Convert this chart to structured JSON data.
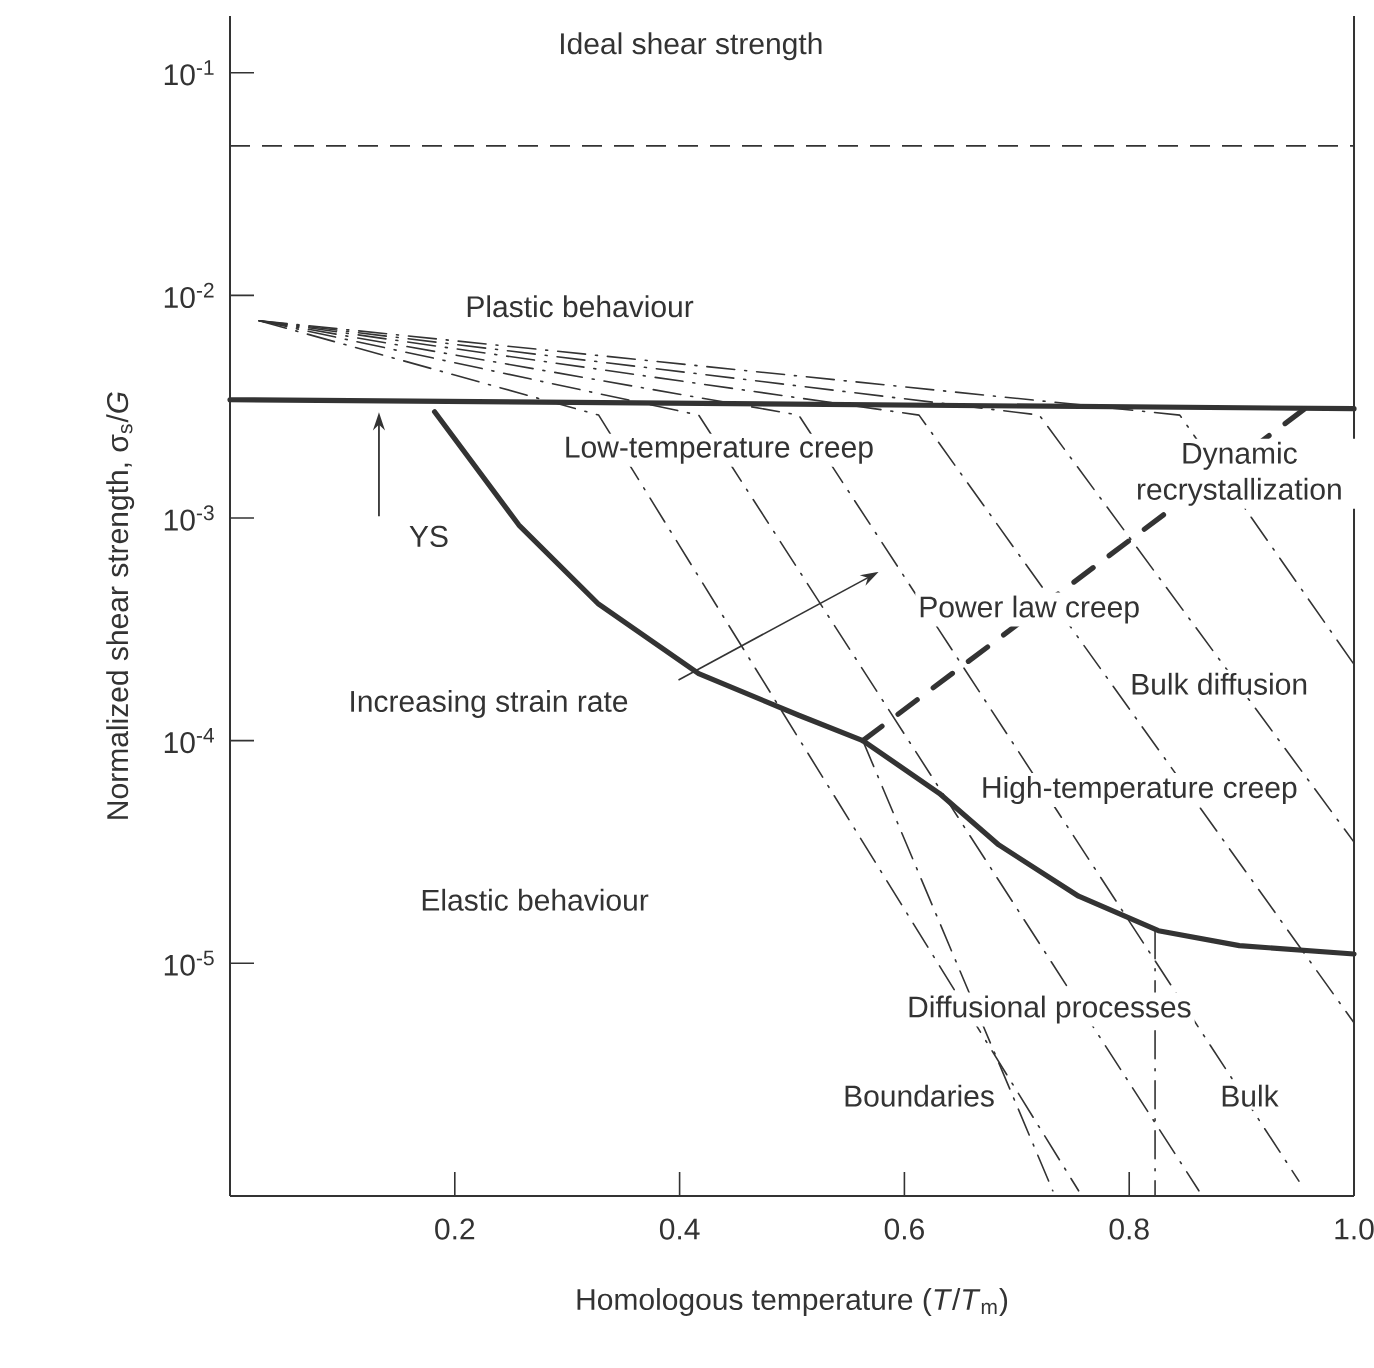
{
  "chart_data": {
    "type": "line",
    "xlabel": "Homologous temperature (*T*/*T*$_{m}$)",
    "ylabel": "Normalized shear strength, σ$_{s}$/*G*",
    "xlim": [
      0,
      1
    ],
    "ylim": [
      9e-07,
      0.18
    ],
    "xticks": [
      0.2,
      0.4,
      0.6,
      0.8,
      {
        "value": 1,
        "label": "1.0"
      }
    ],
    "yticks": [
      {
        "value": 0.1,
        "label": "10$^{-1}$"
      },
      {
        "value": 0.01,
        "label": "10$^{-2}$"
      },
      {
        "value": 0.001,
        "label": "10$^{-3}$"
      },
      {
        "value": 0.0001,
        "label": "10$^{-4}$"
      },
      {
        "value": 1e-05,
        "label": "10$^{-5}$"
      }
    ],
    "log": "y",
    "marker": "none",
    "ref_lines": [
      {
        "axis": "y",
        "value": 0.047,
        "label": "Ideal shear strength",
        "line_style": "dashed",
        "color": "#333333"
      }
    ],
    "series": [
      {
        "color": "#333333",
        "line_style": "solid",
        "x": [
          0,
          1
        ],
        "values": [
          0.0034,
          0.0031
        ]
      },
      {
        "color": "#333333",
        "line_style": "solid",
        "x": [
          0.182,
          0.257,
          0.328,
          0.417,
          0.506,
          0.563,
          0.631,
          0.684,
          0.755,
          0.826,
          0.898,
          1.0
        ],
        "values": [
          0.003,
          0.00093,
          0.00041,
          0.0002,
          0.00013,
          0.0001,
          5.8e-05,
          3.4e-05,
          2e-05,
          1.4e-05,
          1.2e-05,
          1.1e-05
        ]
      },
      {
        "color": "#333333",
        "line_style": "dashed",
        "x": [
          0.563,
          0.96
        ],
        "values": [
          0.0001,
          0.0032
        ]
      },
      {
        "color": "#333333",
        "line_style": "dashdot",
        "x": [
          0.026,
          0.328,
          0.755
        ],
        "values": [
          0.0077,
          0.0029,
          9.5e-07
        ]
      },
      {
        "color": "#333333",
        "line_style": "dashdot",
        "x": [
          0.026,
          0.417,
          0.862
        ],
        "values": [
          0.0077,
          0.0029,
          9.5e-07
        ]
      },
      {
        "color": "#333333",
        "line_style": "dashdot",
        "x": [
          0.026,
          0.506,
          0.951
        ],
        "values": [
          0.0077,
          0.0029,
          1.05e-06
        ]
      },
      {
        "color": "#333333",
        "line_style": "dashdot",
        "x": [
          0.026,
          0.613,
          1.0
        ],
        "values": [
          0.0077,
          0.0029,
          5.4e-06
        ]
      },
      {
        "color": "#333333",
        "line_style": "dashdot",
        "x": [
          0.026,
          0.72,
          1.0
        ],
        "values": [
          0.0077,
          0.0029,
          3.5e-05
        ]
      },
      {
        "color": "#333333",
        "line_style": "dashdot",
        "x": [
          0.026,
          0.845,
          1.0
        ],
        "values": [
          0.0077,
          0.0029,
          0.00022
        ]
      },
      {
        "color": "#333333",
        "line_style": "dashdot",
        "x": [
          0.563,
          0.732
        ],
        "values": [
          0.0001,
          9.5e-07
        ]
      },
      {
        "color": "#333333",
        "line_style": "dashdot",
        "x": [
          0.823,
          0.823
        ],
        "values": [
          1.4e-05,
          9e-07
        ]
      }
    ],
    "annotations": [
      "Plastic behaviour",
      "Low-temperature creep",
      "Dynamic recrystallization",
      "YS",
      "Power law creep",
      "Increasing strain rate",
      "Bulk diffusion",
      "High-temperature creep",
      "Elastic behaviour",
      "Diffusional processes",
      "Boundaries",
      "Bulk"
    ]
  }
}
